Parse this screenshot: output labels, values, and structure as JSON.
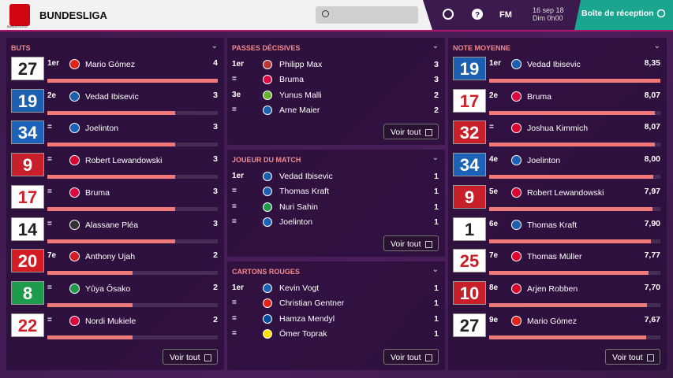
{
  "header": {
    "league": "BUNDESLIGA",
    "logo_text": "BUNDESLIGA",
    "fm": "FM",
    "date": "16 sep 18",
    "time": "Dim 0h00",
    "inbox": "Boîte de réception"
  },
  "panels": [
    {
      "title": "BUTS",
      "button": "Voir tout",
      "rows": [
        {
          "number": "27",
          "kit": [
            "#ffffff",
            "#222222"
          ],
          "rank": "1er",
          "club_color": "#e32219",
          "name": "Mario Gómez",
          "value": 4
        },
        {
          "number": "19",
          "kit": [
            "#1c5fb0",
            "#ffffff"
          ],
          "rank": "2e",
          "club_color": "#1c5fb0",
          "name": "Vedad Ibisevic",
          "value": 3
        },
        {
          "number": "34",
          "kit": [
            "#1c62b8",
            "#ffffff"
          ],
          "rank": "=",
          "club_color": "#1c62b8",
          "name": "Joelinton",
          "value": 3
        },
        {
          "number": "9",
          "kit": [
            "#c8202a",
            "#ffffff"
          ],
          "rank": "=",
          "club_color": "#dc052d",
          "name": "Robert Lewandowski",
          "value": 3
        },
        {
          "number": "17",
          "kit": [
            "#ffffff",
            "#d0202a"
          ],
          "rank": "=",
          "club_color": "#dd0741",
          "name": "Bruma",
          "value": 3
        },
        {
          "number": "14",
          "kit": [
            "#ffffff",
            "#222222"
          ],
          "rank": "=",
          "club_color": "#333333",
          "name": "Alassane Pléa",
          "value": 3
        },
        {
          "number": "20",
          "kit": [
            "#d41c24",
            "#ffffff"
          ],
          "rank": "7e",
          "club_color": "#d41c24",
          "name": "Anthony Ujah",
          "value": 2
        },
        {
          "number": "8",
          "kit": [
            "#1d9a4a",
            "#ffffff"
          ],
          "rank": "=",
          "club_color": "#1d9a4a",
          "name": "Yûya Ôsako",
          "value": 2
        },
        {
          "number": "22",
          "kit": [
            "#ffffff",
            "#d0202a"
          ],
          "rank": "=",
          "club_color": "#dd0741",
          "name": "Nordi Mukiele",
          "value": 2
        }
      ]
    },
    {
      "title": "PASSES DÉCISIVES",
      "button": "Voir tout",
      "rows": [
        {
          "rank": "1er",
          "club_color": "#ba3733",
          "name": "Philipp Max",
          "value": 3
        },
        {
          "rank": "=",
          "club_color": "#dd0741",
          "name": "Bruma",
          "value": 3
        },
        {
          "rank": "3e",
          "club_color": "#65b32e",
          "name": "Yunus Malli",
          "value": 2
        },
        {
          "rank": "=",
          "club_color": "#1c5fb0",
          "name": "Arne Maier",
          "value": 2
        }
      ]
    },
    {
      "title": "JOUEUR DU MATCH",
      "button": "Voir tout",
      "rows": [
        {
          "rank": "1er",
          "club_color": "#1c5fb0",
          "name": "Vedad Ibisevic",
          "value": 1
        },
        {
          "rank": "=",
          "club_color": "#1c5fb0",
          "name": "Thomas Kraft",
          "value": 1
        },
        {
          "rank": "=",
          "club_color": "#1d9a4a",
          "name": "Nuri Sahin",
          "value": 1
        },
        {
          "rank": "=",
          "club_color": "#1c62b8",
          "name": "Joelinton",
          "value": 1
        }
      ]
    },
    {
      "title": "CARTONS ROUGES",
      "button": "Voir tout",
      "rows": [
        {
          "rank": "1er",
          "club_color": "#1c62b8",
          "name": "Kevin Vogt",
          "value": 1
        },
        {
          "rank": "=",
          "club_color": "#e32219",
          "name": "Christian Gentner",
          "value": 1
        },
        {
          "rank": "=",
          "club_color": "#004d9d",
          "name": "Hamza Mendyl",
          "value": 1
        },
        {
          "rank": "=",
          "club_color": "#fde100",
          "name": "Ömer Toprak",
          "value": 1
        }
      ]
    },
    {
      "title": "NOTE MOYENNE",
      "button": "Voir tout",
      "rows": [
        {
          "number": "19",
          "kit": [
            "#1c5fb0",
            "#ffffff"
          ],
          "rank": "1er",
          "club_color": "#1c5fb0",
          "name": "Vedad Ibisevic",
          "value": 8.35,
          "value_label": "8,35"
        },
        {
          "number": "17",
          "kit": [
            "#ffffff",
            "#d0202a"
          ],
          "rank": "2e",
          "club_color": "#dd0741",
          "name": "Bruma",
          "value": 8.07,
          "value_label": "8,07"
        },
        {
          "number": "32",
          "kit": [
            "#c8202a",
            "#ffffff"
          ],
          "rank": "=",
          "club_color": "#dc052d",
          "name": "Joshua Kimmich",
          "value": 8.07,
          "value_label": "8,07"
        },
        {
          "number": "34",
          "kit": [
            "#1c62b8",
            "#ffffff"
          ],
          "rank": "4e",
          "club_color": "#1c62b8",
          "name": "Joelinton",
          "value": 8.0,
          "value_label": "8,00"
        },
        {
          "number": "9",
          "kit": [
            "#c8202a",
            "#ffffff"
          ],
          "rank": "5e",
          "club_color": "#dc052d",
          "name": "Robert Lewandowski",
          "value": 7.97,
          "value_label": "7,97"
        },
        {
          "number": "1",
          "kit": [
            "#ffffff",
            "#222222"
          ],
          "rank": "6e",
          "club_color": "#1c5fb0",
          "name": "Thomas Kraft",
          "value": 7.9,
          "value_label": "7,90"
        },
        {
          "number": "25",
          "kit": [
            "#ffffff",
            "#c8202a"
          ],
          "rank": "7e",
          "club_color": "#dc052d",
          "name": "Thomas Müller",
          "value": 7.77,
          "value_label": "7,77"
        },
        {
          "number": "10",
          "kit": [
            "#c8202a",
            "#ffffff"
          ],
          "rank": "8e",
          "club_color": "#dc052d",
          "name": "Arjen Robben",
          "value": 7.7,
          "value_label": "7,70"
        },
        {
          "number": "27",
          "kit": [
            "#ffffff",
            "#222222"
          ],
          "rank": "9e",
          "club_color": "#e32219",
          "name": "Mario Gómez",
          "value": 7.67,
          "value_label": "7,67"
        }
      ]
    }
  ]
}
